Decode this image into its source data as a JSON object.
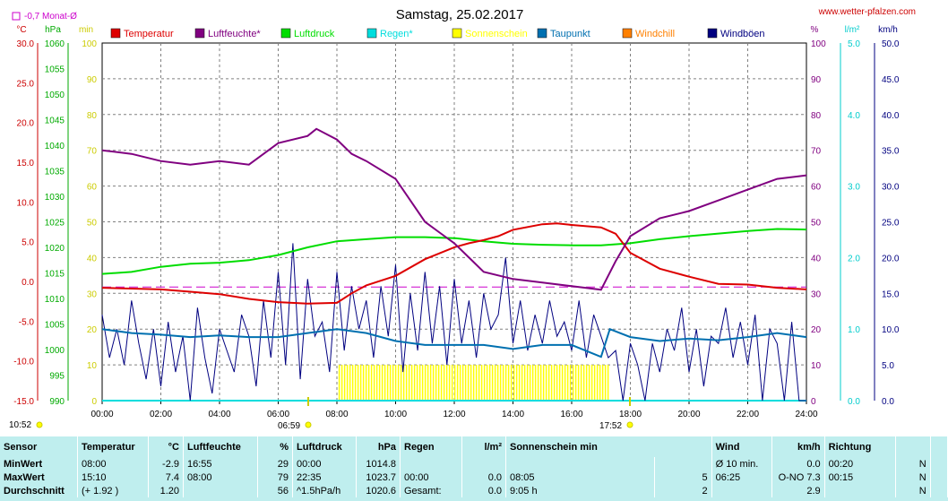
{
  "header": {
    "title": "Samstag, 25.02.2017",
    "url": "www.wetter-pfalzen.com",
    "month_avg": "-0,7 Monat-Ø"
  },
  "axes": {
    "temp": {
      "unit": "°C",
      "min": -15,
      "max": 30,
      "ticks": [
        "30.0",
        "25.0",
        "20.0",
        "15.0",
        "10.0",
        "5.0",
        "0.0",
        "-5.0",
        "-10.0",
        "-15.0"
      ],
      "color": "#cc0000"
    },
    "press": {
      "unit": "hPa",
      "min": 990,
      "max": 1060,
      "ticks": [
        "1060",
        "1055",
        "1050",
        "1045",
        "1040",
        "1035",
        "1030",
        "1025",
        "1020",
        "1015",
        "1010",
        "1005",
        "1000",
        "995",
        "990"
      ],
      "color": "#00aa00"
    },
    "minutes": {
      "unit": "min",
      "min": 0,
      "max": 100,
      "ticks": [
        "100",
        "90",
        "80",
        "70",
        "60",
        "50",
        "40",
        "30",
        "20",
        "10",
        "0"
      ],
      "color": "#cccc00"
    },
    "humid": {
      "unit": "%",
      "min": 0,
      "max": 100,
      "ticks": [
        "100",
        "90",
        "80",
        "70",
        "60",
        "50",
        "40",
        "30",
        "20",
        "10",
        "0"
      ],
      "color": "#800080"
    },
    "rain": {
      "unit": "l/m²",
      "min": 0,
      "max": 5,
      "ticks": [
        "5.0",
        "4.0",
        "3.0",
        "2.0",
        "1.0",
        "0.0"
      ],
      "color": "#00cccc"
    },
    "wind": {
      "unit": "km/h",
      "min": 0,
      "max": 50,
      "ticks": [
        "50.0",
        "45.0",
        "40.0",
        "35.0",
        "30.0",
        "25.0",
        "20.0",
        "15.0",
        "10.0",
        "5.0",
        "0.0"
      ],
      "color": "#000080"
    },
    "x_ticks": [
      "00:00",
      "02:00",
      "04:00",
      "06:00",
      "08:00",
      "10:00",
      "12:00",
      "14:00",
      "16:00",
      "18:00",
      "20:00",
      "22:00",
      "24:00"
    ]
  },
  "sun_events": {
    "sunrise": "06:59",
    "sunset": "17:52",
    "day_length": "10:52"
  },
  "chart_data": {
    "type": "line",
    "x_unit": "hour",
    "series": [
      {
        "name": "Temperatur",
        "axis": "temp",
        "color": "#dd0000",
        "x": [
          0,
          1,
          2,
          3,
          4,
          5,
          6,
          7,
          8,
          8.5,
          9,
          10,
          11,
          12,
          12.5,
          13,
          13.5,
          14,
          15,
          15.5,
          16,
          17,
          17.5,
          18,
          19,
          20,
          21,
          22,
          23,
          24
        ],
        "y": [
          -0.8,
          -0.9,
          -1.0,
          -1.3,
          -1.6,
          -2.2,
          -2.6,
          -2.8,
          -2.7,
          -1.5,
          -0.5,
          0.7,
          2.8,
          4.3,
          4.8,
          5.2,
          5.7,
          6.5,
          7.2,
          7.3,
          7.1,
          6.8,
          6.0,
          3.6,
          1.6,
          0.6,
          -0.3,
          -0.4,
          -0.8,
          -1.0
        ]
      },
      {
        "name": "Luftfeuchte*",
        "axis": "humid",
        "color": "#800080",
        "x": [
          0,
          1,
          2,
          3,
          4,
          5,
          6,
          7,
          7.3,
          8,
          8.5,
          9,
          10,
          11,
          11.5,
          12,
          12.5,
          13,
          14,
          15,
          16,
          17,
          17.5,
          18,
          19,
          20,
          21,
          22,
          23,
          24
        ],
        "y": [
          70,
          69,
          67,
          66,
          67,
          66,
          72,
          74,
          76,
          73,
          69,
          67,
          62,
          50,
          47,
          44,
          40,
          36,
          34,
          33,
          32,
          31,
          39,
          46,
          51,
          53,
          56,
          59,
          62,
          63
        ]
      },
      {
        "name": "Luftdruck",
        "axis": "press",
        "color": "#00dd00",
        "x": [
          0,
          1,
          2,
          3,
          4,
          5,
          6,
          7,
          8,
          9,
          10,
          11,
          12,
          13,
          14,
          15,
          16,
          17,
          18,
          19,
          20,
          21,
          22,
          23,
          24
        ],
        "y": [
          1014.8,
          1015.2,
          1016.2,
          1016.8,
          1017.0,
          1017.5,
          1018.5,
          1020.0,
          1021.2,
          1021.6,
          1022.0,
          1022.0,
          1021.8,
          1021.2,
          1020.7,
          1020.5,
          1020.4,
          1020.4,
          1020.8,
          1021.6,
          1022.2,
          1022.7,
          1023.2,
          1023.6,
          1023.5
        ]
      },
      {
        "name": "Taupunkt",
        "axis": "temp",
        "color": "#0070b0",
        "x": [
          0,
          1,
          2,
          3,
          4,
          5,
          6,
          7,
          8,
          9,
          10,
          11,
          12,
          13,
          14,
          15,
          16,
          17,
          17.3,
          18,
          19,
          20,
          21,
          22,
          23,
          24
        ],
        "y": [
          -6.0,
          -6.5,
          -6.7,
          -7.0,
          -6.8,
          -7.0,
          -7.0,
          -6.5,
          -6.0,
          -6.5,
          -7.5,
          -8.0,
          -8.0,
          -8.0,
          -8.5,
          -8.0,
          -8.0,
          -9.5,
          -6.0,
          -7.0,
          -7.5,
          -7.2,
          -7.4,
          -7.0,
          -6.5,
          -7.0
        ]
      },
      {
        "name": "Regen*",
        "axis": "rain",
        "color": "#00dddd",
        "x": [
          0,
          24
        ],
        "y": [
          0,
          0
        ]
      },
      {
        "name": "Sonnenschein",
        "axis": "minutes",
        "color": "#ffff00",
        "x": [
          8.08,
          17.3
        ],
        "y": [
          5,
          5
        ]
      },
      {
        "name": "Windchill",
        "axis": "temp",
        "color": "#ff8000",
        "x": [],
        "y": []
      },
      {
        "name": "Windböen",
        "axis": "wind",
        "color": "#000080",
        "x": [
          0,
          0.25,
          0.5,
          0.75,
          1,
          1.25,
          1.5,
          1.75,
          2,
          2.25,
          2.5,
          2.75,
          3,
          3.25,
          3.5,
          3.75,
          4,
          4.25,
          4.5,
          4.75,
          5,
          5.25,
          5.5,
          5.75,
          6,
          6.25,
          6.5,
          6.75,
          7,
          7.25,
          7.5,
          7.75,
          8,
          8.25,
          8.5,
          8.75,
          9,
          9.25,
          9.5,
          9.75,
          10,
          10.25,
          10.5,
          10.75,
          11,
          11.25,
          11.5,
          11.75,
          12,
          12.25,
          12.5,
          12.75,
          13,
          13.25,
          13.5,
          13.75,
          14,
          14.25,
          14.5,
          14.75,
          15,
          15.25,
          15.5,
          15.75,
          16,
          16.25,
          16.5,
          16.75,
          17,
          17.25,
          17.5,
          17.75,
          18,
          18.25,
          18.5,
          18.75,
          19,
          19.25,
          19.5,
          19.75,
          20,
          20.25,
          20.5,
          20.75,
          21,
          21.25,
          21.5,
          21.75,
          22,
          22.25,
          22.5,
          22.75,
          23,
          23.25,
          23.5,
          23.75,
          24
        ],
        "y": [
          12,
          6,
          10,
          5,
          14,
          8,
          3,
          10,
          2,
          11,
          4,
          9,
          0,
          13,
          6,
          1,
          10,
          7,
          4,
          12,
          9,
          2,
          14,
          6,
          18,
          5,
          22,
          3,
          17,
          9,
          11,
          4,
          18,
          7,
          16,
          10,
          14,
          6,
          16,
          9,
          19,
          4,
          15,
          7,
          18,
          8,
          16,
          5,
          17,
          8,
          14,
          6,
          15,
          10,
          12,
          20,
          8,
          14,
          7,
          12,
          8,
          14,
          9,
          11,
          7,
          14,
          6,
          12,
          9,
          6,
          7,
          0,
          8,
          5,
          0,
          8,
          4,
          10,
          7,
          13,
          4,
          10,
          2,
          9,
          8,
          13,
          6,
          11,
          5,
          12,
          0,
          10,
          8,
          0,
          11,
          0,
          0
        ]
      }
    ],
    "reference_line": {
      "axis": "temp",
      "value": -0.7,
      "color": "#cc00cc"
    }
  },
  "legend": [
    {
      "label": "Temperatur",
      "color": "#dd0000"
    },
    {
      "label": "Luftfeuchte*",
      "color": "#800080"
    },
    {
      "label": "Luftdruck",
      "color": "#00dd00"
    },
    {
      "label": "Regen*",
      "color": "#00dddd"
    },
    {
      "label": "Sonnenschein",
      "color": "#ffff00"
    },
    {
      "label": "Taupunkt",
      "color": "#0070b0"
    },
    {
      "label": "Windchill",
      "color": "#ff8000"
    },
    {
      "label": "Windböen",
      "color": "#000080"
    }
  ],
  "stats": {
    "headers": {
      "sensor": "Sensor",
      "temp": "Temperatur",
      "temp_u": "°C",
      "hum": "Luftfeuchte",
      "hum_u": "%",
      "press": "Luftdruck",
      "press_u": "hPa",
      "rain": "Regen",
      "rain_u": "l/m²",
      "sun": "Sonnenschein min",
      "wind": "Wind",
      "wind_u": "km/h",
      "dir": "Richtung"
    },
    "rows": [
      {
        "label": "MinWert",
        "t_time": "08:00",
        "t_val": "-2.9",
        "h_time": "16:55",
        "h_val": "29",
        "p_time": "00:00",
        "p_val": "1014.8",
        "r_time": "",
        "r_val": "",
        "s_time": "",
        "s_val": "",
        "w_time": "Ø 10 min.",
        "w_val": "0.0",
        "d_time": "00:20",
        "d_val": "N"
      },
      {
        "label": "MaxWert",
        "t_time": "15:10",
        "t_val": "7.4",
        "h_time": "08:00",
        "h_val": "79",
        "p_time": "22:35",
        "p_val": "1023.7",
        "r_time": "00:00",
        "r_val": "0.0",
        "s_time": "08:05",
        "s_val": "5",
        "w_time": "06:25",
        "w_val": "O-NO 7.3",
        "d_time": "00:15",
        "d_val": "N"
      },
      {
        "label": "Durchschnitt",
        "t_time": "(+ 1.92 )",
        "t_val": "1.20",
        "h_time": "",
        "h_val": "56",
        "p_time": "^1.5hPa/h",
        "p_val": "1020.6",
        "r_time": "Gesamt:",
        "r_val": "0.0",
        "s_time": "9:05 h",
        "s_val": "2",
        "w_time": "",
        "w_val": "2.9",
        "d_time": "",
        "d_val": "N"
      }
    ]
  }
}
